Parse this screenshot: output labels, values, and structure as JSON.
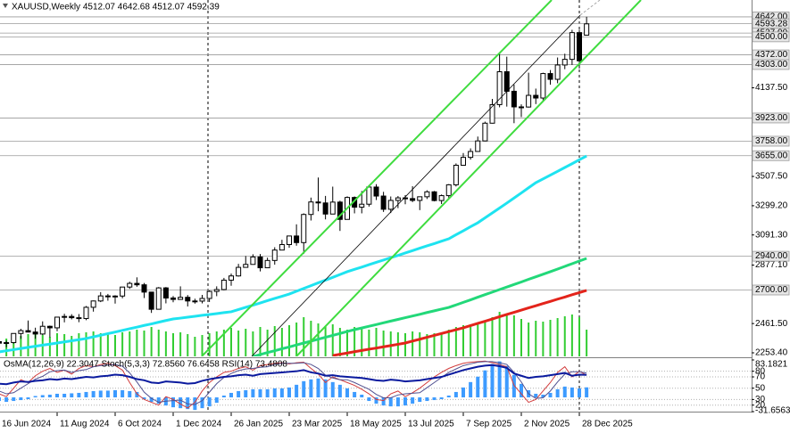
{
  "header": "XAUUSD,Weekly 4512.07 4642.68 4512.07 4592.39",
  "chart_data": [
    {
      "type": "candlestick",
      "categories": [
        "16 Jun 2024",
        null,
        null,
        null,
        null,
        null,
        null,
        null,
        "11 Aug 2024",
        null,
        null,
        null,
        null,
        null,
        null,
        null,
        "6 Oct 2024",
        null,
        null,
        null,
        null,
        null,
        null,
        null,
        "1 Dec 2024",
        null,
        null,
        null,
        null,
        null,
        null,
        null,
        "26 Jan 2025",
        null,
        null,
        null,
        null,
        null,
        null,
        null,
        "23 Mar 2025",
        null,
        null,
        null,
        null,
        null,
        null,
        null,
        "18 May 2025",
        null,
        null,
        null,
        null,
        null,
        null,
        null,
        "13 Jul 2025",
        null,
        null,
        null,
        null,
        null,
        null,
        null,
        "7 Sep 2025",
        null,
        null,
        null,
        null,
        null,
        null,
        null,
        "2 Nov 2025",
        null,
        null,
        null,
        null,
        null,
        null,
        null,
        "28 Dec 2025",
        null
      ],
      "open": [
        2333,
        2322,
        2326,
        2391,
        2411,
        2401,
        2387,
        2442,
        2431,
        2507,
        2512,
        2503,
        2497,
        2577,
        2622,
        2658,
        2653,
        2657,
        2721,
        2747,
        2737,
        2685,
        2563,
        2715,
        2643,
        2633,
        2648,
        2622,
        2621,
        2640,
        2690,
        2703,
        2770,
        2800,
        2861,
        2882,
        2935,
        2858,
        2910,
        2984,
        3023,
        3084,
        3037,
        3237,
        3326,
        3319,
        3240,
        3325,
        3202,
        3358,
        3289,
        3310,
        3432,
        3368,
        3274,
        3337,
        3355,
        3350,
        3337,
        3363,
        3398,
        3336,
        3371,
        3448,
        3587,
        3643,
        3685,
        3760,
        3886,
        4018,
        4252,
        4113,
        4002,
        4001,
        4084,
        4065,
        4239,
        4198,
        4300,
        4340,
        4530,
        4512.07
      ],
      "high": [
        2368,
        2340,
        2392,
        2424,
        2483,
        2432,
        2477,
        2447,
        2509,
        2531,
        2528,
        2529,
        2586,
        2625,
        2685,
        2672,
        2663,
        2722,
        2759,
        2790,
        2750,
        2687,
        2721,
        2721,
        2657,
        2726,
        2664,
        2638,
        2665,
        2697,
        2726,
        2786,
        2817,
        2886,
        2942,
        2954,
        2956,
        2930,
        3004,
        3057,
        3086,
        3167,
        3245,
        3357,
        3500,
        3369,
        3435,
        3335,
        3366,
        3365,
        3404,
        3446,
        3452,
        3398,
        3365,
        3368,
        3375,
        3438,
        3363,
        3409,
        3404,
        3379,
        3453,
        3600,
        3674,
        3707,
        3791,
        3897,
        4059,
        4381,
        4359,
        4161,
        4020,
        4245,
        4132,
        4245,
        4264,
        4353,
        4380,
        4550,
        4550,
        4642.68
      ],
      "low": [
        2317,
        2293,
        2319,
        2353,
        2398,
        2353,
        2380,
        2364,
        2407,
        2470,
        2491,
        2471,
        2485,
        2546,
        2614,
        2624,
        2603,
        2641,
        2708,
        2723,
        2643,
        2537,
        2563,
        2605,
        2613,
        2633,
        2583,
        2603,
        2605,
        2615,
        2656,
        2698,
        2730,
        2795,
        2864,
        2880,
        2832,
        2857,
        2880,
        2982,
        3000,
        3015,
        2957,
        3194,
        3260,
        3202,
        3240,
        3120,
        3204,
        3245,
        3245,
        3293,
        3340,
        3255,
        3247,
        3282,
        3310,
        3325,
        3268,
        3347,
        3330,
        3311,
        3351,
        3436,
        3587,
        3627,
        3683,
        3757,
        3884,
        3999,
        4004,
        3886,
        3930,
        3997,
        4022,
        4040,
        4160,
        4170,
        4270,
        4300,
        4275,
        4512.07
      ],
      "close": [
        2322,
        2326,
        2391,
        2411,
        2401,
        2387,
        2442,
        2431,
        2507,
        2512,
        2503,
        2497,
        2577,
        2622,
        2658,
        2653,
        2657,
        2721,
        2747,
        2737,
        2685,
        2563,
        2715,
        2643,
        2633,
        2648,
        2622,
        2621,
        2640,
        2690,
        2703,
        2770,
        2800,
        2861,
        2882,
        2935,
        2858,
        2910,
        2984,
        3023,
        3084,
        3037,
        3237,
        3326,
        3319,
        3240,
        3325,
        3202,
        3358,
        3289,
        3310,
        3432,
        3368,
        3274,
        3337,
        3355,
        3350,
        3337,
        3363,
        3398,
        3336,
        3371,
        3448,
        3587,
        3643,
        3685,
        3760,
        3886,
        4018,
        4252,
        4113,
        4002,
        4001,
        4084,
        4065,
        4239,
        4198,
        4300,
        4340,
        4530,
        4330,
        4592.39
      ],
      "up_color": "#ffffff",
      "down_color": "#000000",
      "volume": {
        "color": "#32cd32",
        "values": [
          22,
          20,
          24,
          23,
          25,
          26,
          24,
          22,
          26,
          25,
          23,
          26,
          27,
          28,
          26,
          25,
          24,
          27,
          28,
          30,
          29,
          33,
          30,
          28,
          26,
          27,
          25,
          22,
          24,
          26,
          28,
          30,
          32,
          29,
          31,
          28,
          33,
          30,
          34,
          32,
          35,
          38,
          44,
          40,
          37,
          34,
          36,
          32,
          30,
          33,
          31,
          30,
          32,
          29,
          28,
          27,
          26,
          28,
          27,
          25,
          26,
          27,
          30,
          33,
          35,
          36,
          38,
          40,
          44,
          50,
          48,
          46,
          42,
          38,
          40,
          39,
          41,
          43,
          45,
          47,
          44,
          30
        ]
      },
      "series": [
        {
          "color": "#1ee3f0",
          "values": [
            2260,
            2268,
            2276,
            2284,
            2292,
            2300,
            2308,
            2315,
            2323,
            2331,
            2339,
            2347,
            2355,
            2367,
            2378,
            2390,
            2401,
            2413,
            2425,
            2436,
            2448,
            2459,
            2471,
            2483,
            2494,
            2500,
            2507,
            2513,
            2520,
            2526,
            2532,
            2539,
            2545,
            2561,
            2577,
            2592,
            2608,
            2624,
            2640,
            2655,
            2671,
            2691,
            2711,
            2731,
            2751,
            2770,
            2790,
            2810,
            2830,
            2847,
            2863,
            2880,
            2897,
            2913,
            2930,
            2946,
            2963,
            2980,
            2997,
            3014,
            3030,
            3047,
            3064,
            3093,
            3121,
            3150,
            3178,
            3213,
            3248,
            3283,
            3318,
            3354,
            3390,
            3427,
            3463,
            3490,
            3517,
            3544,
            3571,
            3598,
            3626,
            3653
          ]
        },
        {
          "color": "#22d879",
          "values": [
            null,
            null,
            null,
            null,
            null,
            null,
            null,
            null,
            null,
            null,
            null,
            null,
            null,
            null,
            null,
            null,
            null,
            null,
            null,
            null,
            null,
            null,
            null,
            null,
            null,
            null,
            null,
            null,
            null,
            null,
            null,
            null,
            null,
            null,
            null,
            2227,
            2241,
            2255,
            2268,
            2282,
            2295,
            2309,
            2323,
            2336,
            2350,
            2364,
            2377,
            2391,
            2405,
            2418,
            2430,
            2442,
            2454,
            2467,
            2479,
            2491,
            2503,
            2515,
            2527,
            2540,
            2552,
            2564,
            2576,
            2594,
            2612,
            2630,
            2649,
            2667,
            2685,
            2703,
            2721,
            2739,
            2757,
            2776,
            2794,
            2812,
            2830,
            2849,
            2868,
            2887,
            2906,
            2925
          ]
        },
        {
          "color": "#e3241b",
          "values": [
            null,
            null,
            null,
            null,
            null,
            null,
            null,
            null,
            null,
            null,
            null,
            null,
            null,
            null,
            null,
            null,
            null,
            null,
            null,
            null,
            null,
            null,
            null,
            null,
            null,
            null,
            null,
            null,
            null,
            null,
            null,
            null,
            null,
            null,
            null,
            null,
            null,
            null,
            null,
            null,
            null,
            null,
            null,
            null,
            null,
            null,
            2234,
            2243,
            2252,
            2261,
            2270,
            2279,
            2287,
            2296,
            2305,
            2314,
            2323,
            2337,
            2350,
            2364,
            2377,
            2391,
            2404,
            2418,
            2431,
            2447,
            2463,
            2478,
            2494,
            2510,
            2526,
            2541,
            2557,
            2573,
            2588,
            2604,
            2619,
            2635,
            2650,
            2666,
            2681,
            2697
          ]
        }
      ],
      "ylim": [
        2228,
        4762
      ],
      "yticks": [
        {
          "value": 4137.5,
          "label": "4137.50"
        },
        {
          "value": 3507.5,
          "label": "3507.50"
        },
        {
          "value": 3299.2,
          "label": "3299.20"
        },
        {
          "value": 3091.3,
          "label": "3091.30"
        },
        {
          "value": 2877.1,
          "label": "2877.10"
        },
        {
          "value": 2461.5,
          "label": "2461.50"
        },
        {
          "value": 2253.4,
          "label": "2253.40"
        }
      ],
      "levels": [
        {
          "value": 4642,
          "label": "4642.00"
        },
        {
          "value": 4593.28,
          "label": "4593.28"
        },
        {
          "value": 4527,
          "label": "4527.00"
        },
        {
          "value": 4500,
          "label": "4500.00"
        },
        {
          "value": 4372,
          "label": "4372.00"
        },
        {
          "value": 4303,
          "label": "4303.00"
        },
        {
          "value": 3923,
          "label": "3923.00"
        },
        {
          "value": 3758,
          "label": "3758.00"
        },
        {
          "value": 3655,
          "label": "3655.00"
        },
        {
          "value": 2940,
          "label": "2940.00"
        },
        {
          "value": 2700,
          "label": "2700.00"
        }
      ]
    },
    {
      "type": "oscillator",
      "title": "OsMA(12,26,9) 22.3047 Stoch(5,3,3) 72.8560 76.6458 RSI(14) 73.4808",
      "histogram": {
        "color": "#3d9bff",
        "values": [
          -8,
          -10,
          -8,
          -6,
          -4,
          3,
          5,
          6,
          8,
          8,
          9,
          10,
          12,
          14,
          15,
          15,
          16,
          16,
          14,
          12,
          -4,
          -10,
          -14,
          -18,
          -22,
          -24,
          -26,
          -28,
          -24,
          -20,
          -12,
          4,
          10,
          14,
          16,
          18,
          18,
          18,
          20,
          20,
          22,
          28,
          36,
          40,
          42,
          40,
          34,
          28,
          20,
          12,
          6,
          -8,
          -14,
          -18,
          -20,
          -20,
          -18,
          -14,
          -10,
          -8,
          -6,
          -4,
          4,
          12,
          22,
          34,
          46,
          60,
          74,
          80,
          70,
          50,
          30,
          16,
          8,
          6,
          10,
          18,
          24,
          22,
          20,
          22.3047
        ]
      },
      "ylim": [
        -31.6563,
        83.1821
      ],
      "yticks": [
        83.1821,
        -31.6563
      ],
      "y2lim": [
        8.5,
        100
      ],
      "y2ticks": [
        80,
        70,
        50,
        30,
        20
      ],
      "series": [
        {
          "color": "#d23c3c",
          "axis": "y2",
          "values": [
            40,
            35,
            50,
            65,
            60,
            72,
            80,
            85,
            78,
            82,
            75,
            85,
            90,
            88,
            92,
            94,
            90,
            82,
            60,
            40,
            30,
            25,
            20,
            35,
            30,
            22,
            15,
            25,
            45,
            60,
            70,
            78,
            80,
            85,
            88,
            82,
            90,
            92,
            94,
            95,
            93,
            95,
            96,
            85,
            75,
            60,
            70,
            65,
            60,
            55,
            48,
            40,
            30,
            28,
            40,
            45,
            35,
            42,
            50,
            60,
            70,
            78,
            85,
            90,
            94,
            96,
            97,
            98,
            95,
            92,
            88,
            55,
            40,
            25,
            30,
            45,
            60,
            78,
            88,
            70,
            80,
            72.856
          ]
        },
        {
          "color": "#505090",
          "axis": "y2",
          "values": [
            45,
            40,
            42,
            50,
            58,
            66,
            71,
            79,
            81,
            82,
            78,
            81,
            83,
            88,
            90,
            91,
            92,
            89,
            77,
            61,
            43,
            32,
            25,
            27,
            28,
            29,
            22,
            21,
            28,
            43,
            58,
            69,
            76,
            81,
            84,
            85,
            87,
            88,
            92,
            94,
            94,
            94,
            95,
            92,
            85,
            73,
            68,
            65,
            65,
            60,
            54,
            48,
            39,
            33,
            33,
            38,
            40,
            41,
            42,
            51,
            60,
            69,
            78,
            84,
            90,
            93,
            96,
            97,
            97,
            95,
            92,
            78,
            61,
            40,
            32,
            33,
            45,
            61,
            75,
            79,
            79,
            76.6458
          ]
        },
        {
          "color": "#0a1a9e",
          "axis": "y2",
          "values": [
            58,
            57,
            60,
            62,
            61,
            63,
            64,
            66,
            65,
            67,
            66,
            68,
            70,
            69,
            71,
            72,
            74,
            73,
            70,
            66,
            64,
            60,
            59,
            62,
            61,
            60,
            58,
            59,
            63,
            66,
            68,
            70,
            71,
            73,
            74,
            72,
            75,
            76,
            77,
            78,
            79,
            80,
            82,
            78,
            76,
            72,
            73,
            71,
            70,
            69,
            68,
            66,
            64,
            63,
            65,
            64,
            62,
            63,
            64,
            66,
            68,
            70,
            74,
            78,
            82,
            85,
            88,
            90,
            91,
            89,
            86,
            76,
            72,
            68,
            70,
            71,
            73,
            75,
            77,
            72,
            74,
            73.4808
          ]
        }
      ]
    }
  ]
}
